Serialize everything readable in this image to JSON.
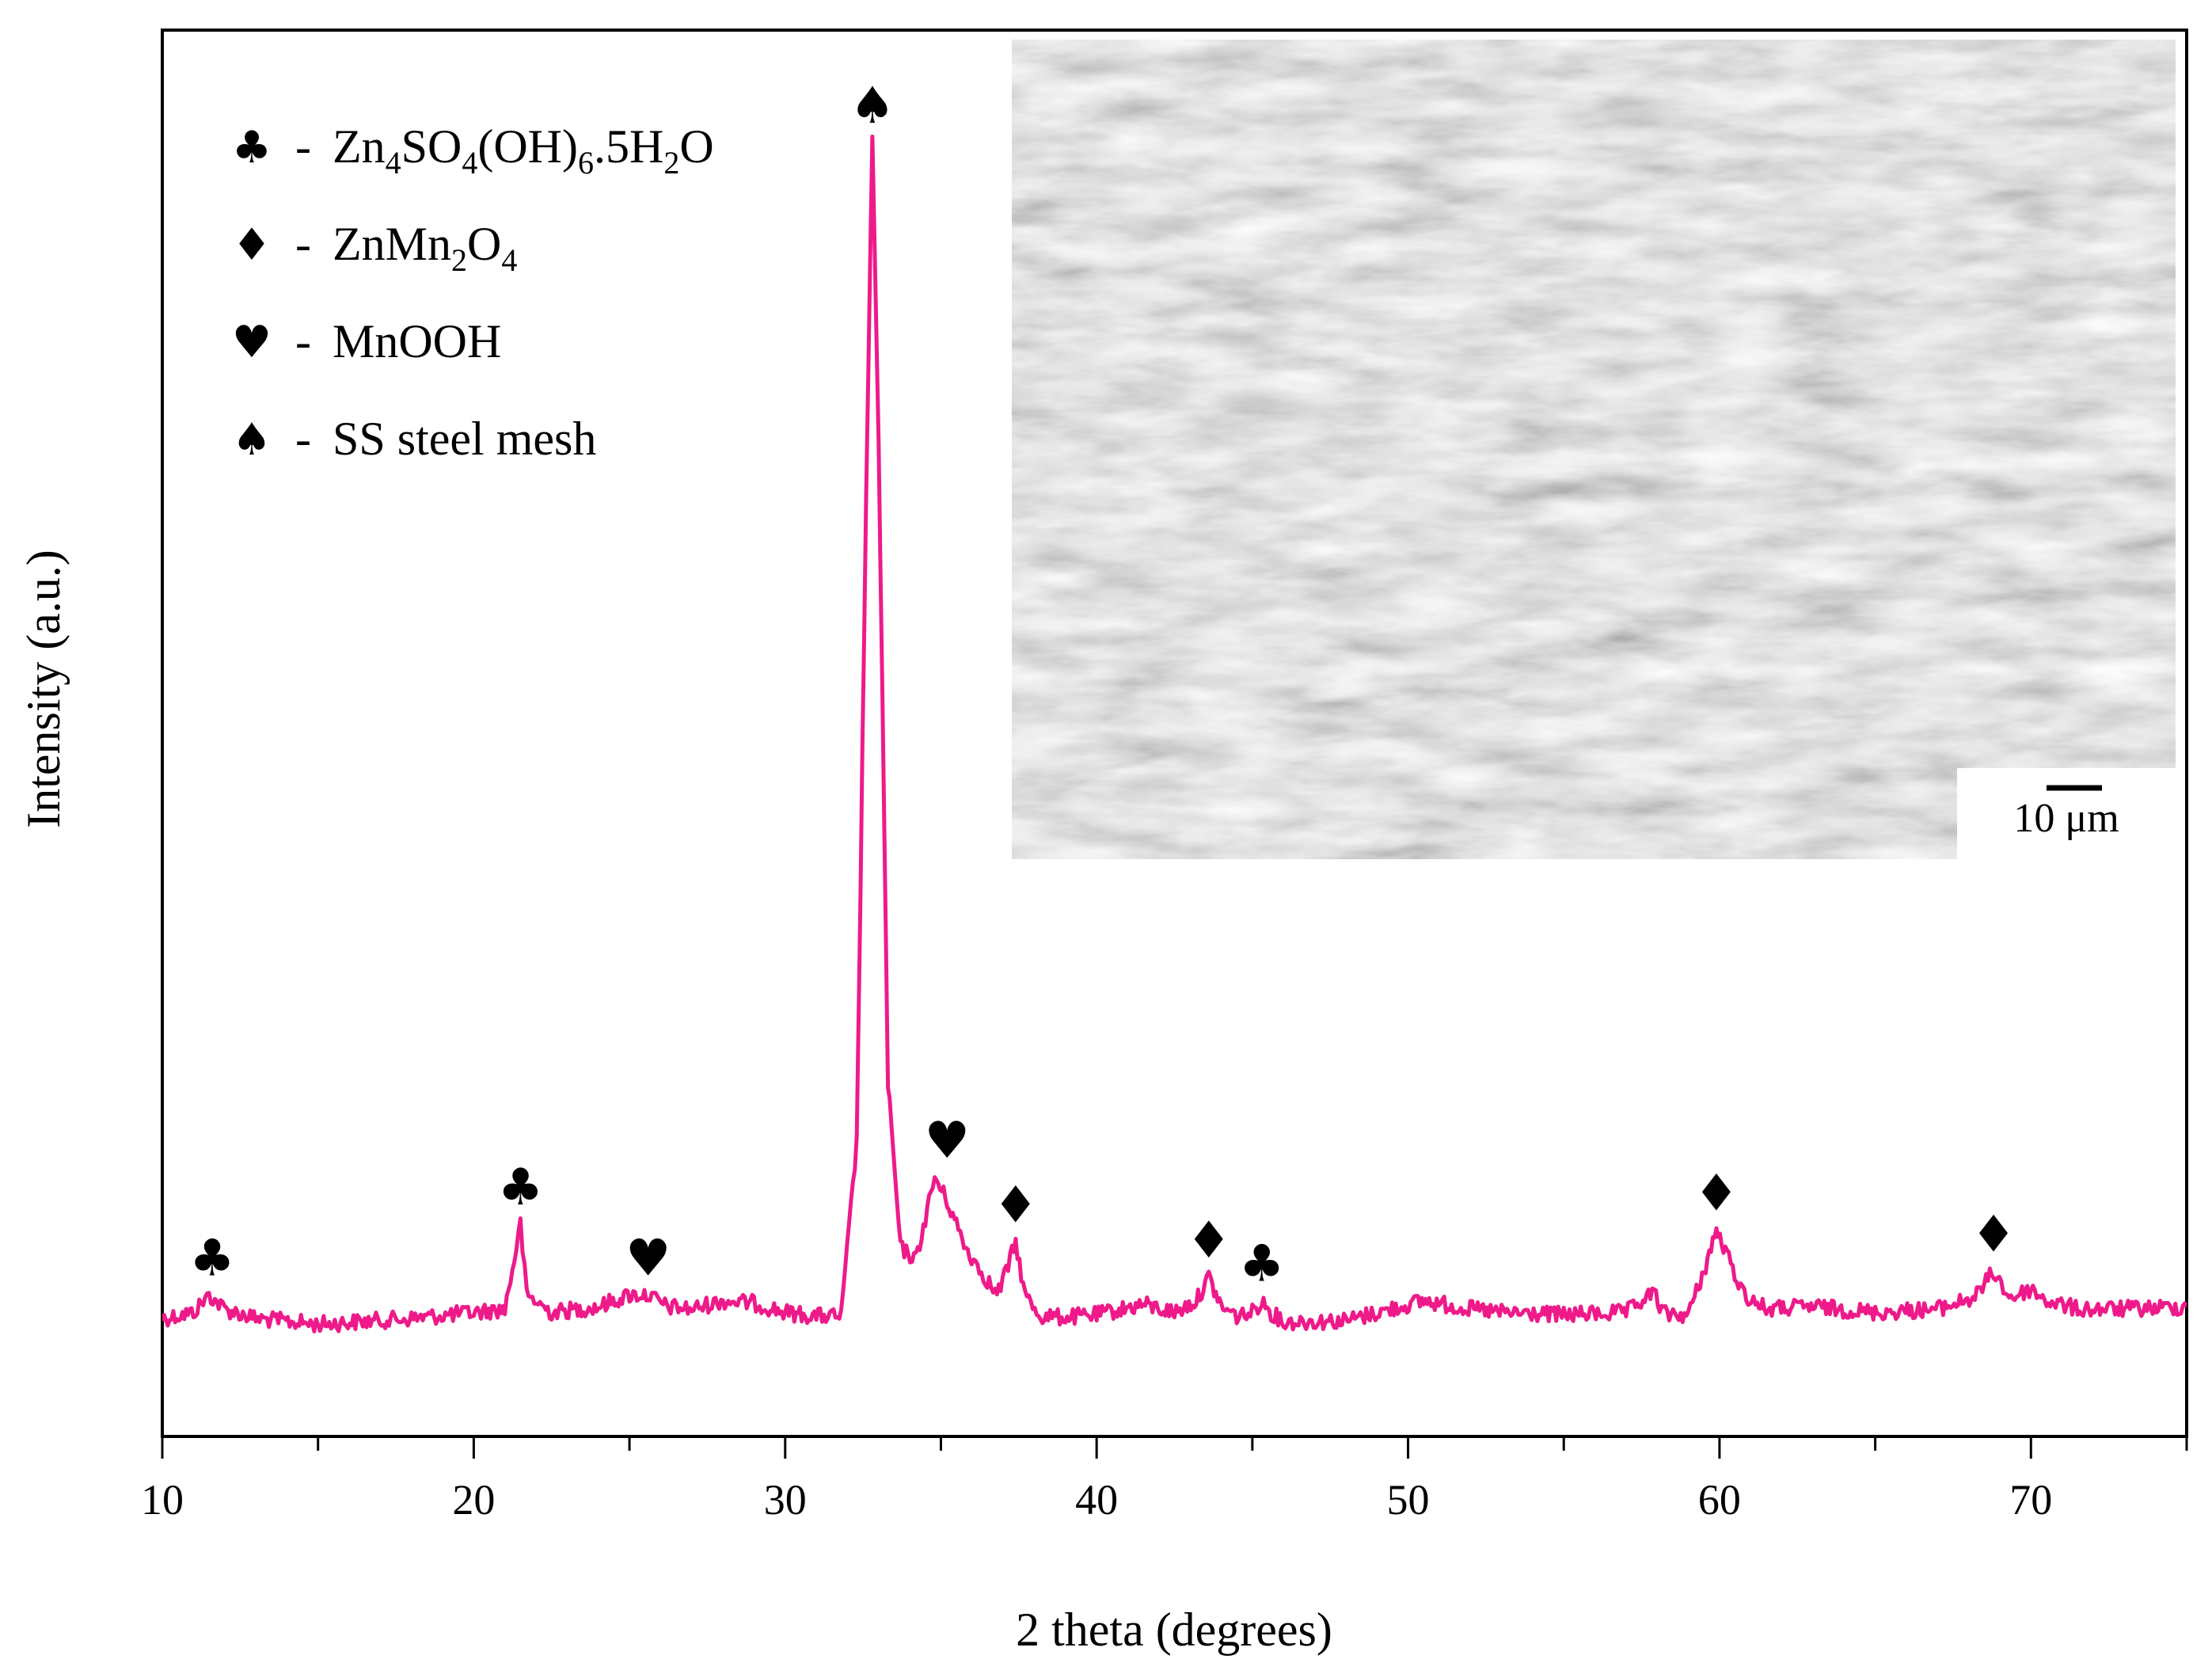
{
  "chart_data": {
    "type": "line",
    "xlabel": "2 theta (degrees)",
    "ylabel": "Intensity (a.u.)",
    "xlim": [
      10,
      75
    ],
    "ylim": [
      -0.12,
      1.0
    ],
    "x_ticks": [
      10,
      20,
      30,
      40,
      50,
      60,
      70
    ],
    "x_minor_step": 5,
    "y_ticks_shown": false,
    "grid": false,
    "legend_position": "top-left",
    "series_color": "#ee1a8a",
    "legend": [
      {
        "symbol": "♣",
        "dash": "-",
        "parts": [
          {
            "t": "Zn",
            "s": false
          },
          {
            "t": "4",
            "s": true
          },
          {
            "t": "SO",
            "s": false
          },
          {
            "t": "4",
            "s": true
          },
          {
            "t": "(OH)",
            "s": false
          },
          {
            "t": "6",
            "s": true
          },
          {
            "t": ".5H",
            "s": false
          },
          {
            "t": "2",
            "s": true
          },
          {
            "t": "O",
            "s": false
          }
        ]
      },
      {
        "symbol": "♦",
        "dash": "-",
        "parts": [
          {
            "t": "ZnMn",
            "s": false
          },
          {
            "t": "2",
            "s": true
          },
          {
            "t": "O",
            "s": false
          },
          {
            "t": "4",
            "s": true
          }
        ]
      },
      {
        "symbol": "♥",
        "dash": "-",
        "parts": [
          {
            "t": "MnOOH",
            "s": false
          }
        ]
      },
      {
        "symbol": "♠",
        "dash": "-",
        "parts": [
          {
            "t": "SS steel mesh",
            "s": false
          }
        ]
      }
    ],
    "series": [
      {
        "x": [
          10,
          11,
          11.5,
          12,
          13,
          15,
          18,
          20,
          21,
          21.3,
          21.5,
          21.7,
          22.5,
          24,
          25,
          25.6,
          26.2,
          27,
          28,
          29,
          30,
          31,
          31.8,
          32.3,
          32.6,
          32.8,
          33.0,
          33.3,
          33.7,
          34.2,
          34.8,
          35.2,
          35.8,
          36.3,
          36.8,
          37.1,
          37.4,
          37.7,
          38.2,
          39,
          40,
          41.5,
          42.5,
          43.2,
          43.6,
          44.0,
          44.5,
          45.0,
          45.3,
          45.6,
          46,
          48,
          50.5,
          52,
          53,
          55,
          57,
          57.9,
          58.2,
          59,
          59.2,
          59.5,
          59.9,
          60.3,
          60.8,
          61.5,
          63,
          65,
          67,
          68.2,
          68.8,
          69.3,
          69.6,
          70,
          70.5,
          71.5,
          73,
          75
        ],
        "y": [
          0,
          0.005,
          0.02,
          0.008,
          0,
          -0.005,
          0,
          0.005,
          0.008,
          0.05,
          0.08,
          0.02,
          0.005,
          0.01,
          0.02,
          0.02,
          0.01,
          0.008,
          0.015,
          0.013,
          0.005,
          0.002,
          0.002,
          0.15,
          0.7,
          1.0,
          0.75,
          0.2,
          0.06,
          0.05,
          0.12,
          0.1,
          0.06,
          0.04,
          0.02,
          0.04,
          0.065,
          0.02,
          0.002,
          0.001,
          0.003,
          0.012,
          0.005,
          0.015,
          0.035,
          0.01,
          0.002,
          0.005,
          0.015,
          0.005,
          -0.003,
          -0.002,
          0.015,
          0.008,
          0.005,
          0.003,
          0.005,
          0.022,
          0.004,
          0.003,
          0.018,
          0.04,
          0.075,
          0.05,
          0.02,
          0.008,
          0.01,
          0.005,
          0.008,
          0.018,
          0.04,
          0.018,
          0.02,
          0.025,
          0.015,
          0.008,
          0.008,
          0.01
        ]
      }
    ],
    "annotations": [
      {
        "x": 11.6,
        "y": 0.02,
        "symbol": "♣"
      },
      {
        "x": 21.5,
        "y": 0.08,
        "symbol": "♣"
      },
      {
        "x": 25.6,
        "y": 0.02,
        "symbol": "♥"
      },
      {
        "x": 32.8,
        "y": 1.0,
        "symbol": "♠"
      },
      {
        "x": 35.2,
        "y": 0.12,
        "symbol": "♥"
      },
      {
        "x": 37.4,
        "y": 0.065,
        "symbol": "♦"
      },
      {
        "x": 43.6,
        "y": 0.035,
        "symbol": "♦"
      },
      {
        "x": 45.3,
        "y": 0.015,
        "symbol": "♣"
      },
      {
        "x": 59.9,
        "y": 0.075,
        "symbol": "♦"
      },
      {
        "x": 68.8,
        "y": 0.04,
        "symbol": "♦"
      }
    ],
    "inset": {
      "type": "SEM micrograph",
      "scale_bar_label": "10 μm"
    }
  }
}
